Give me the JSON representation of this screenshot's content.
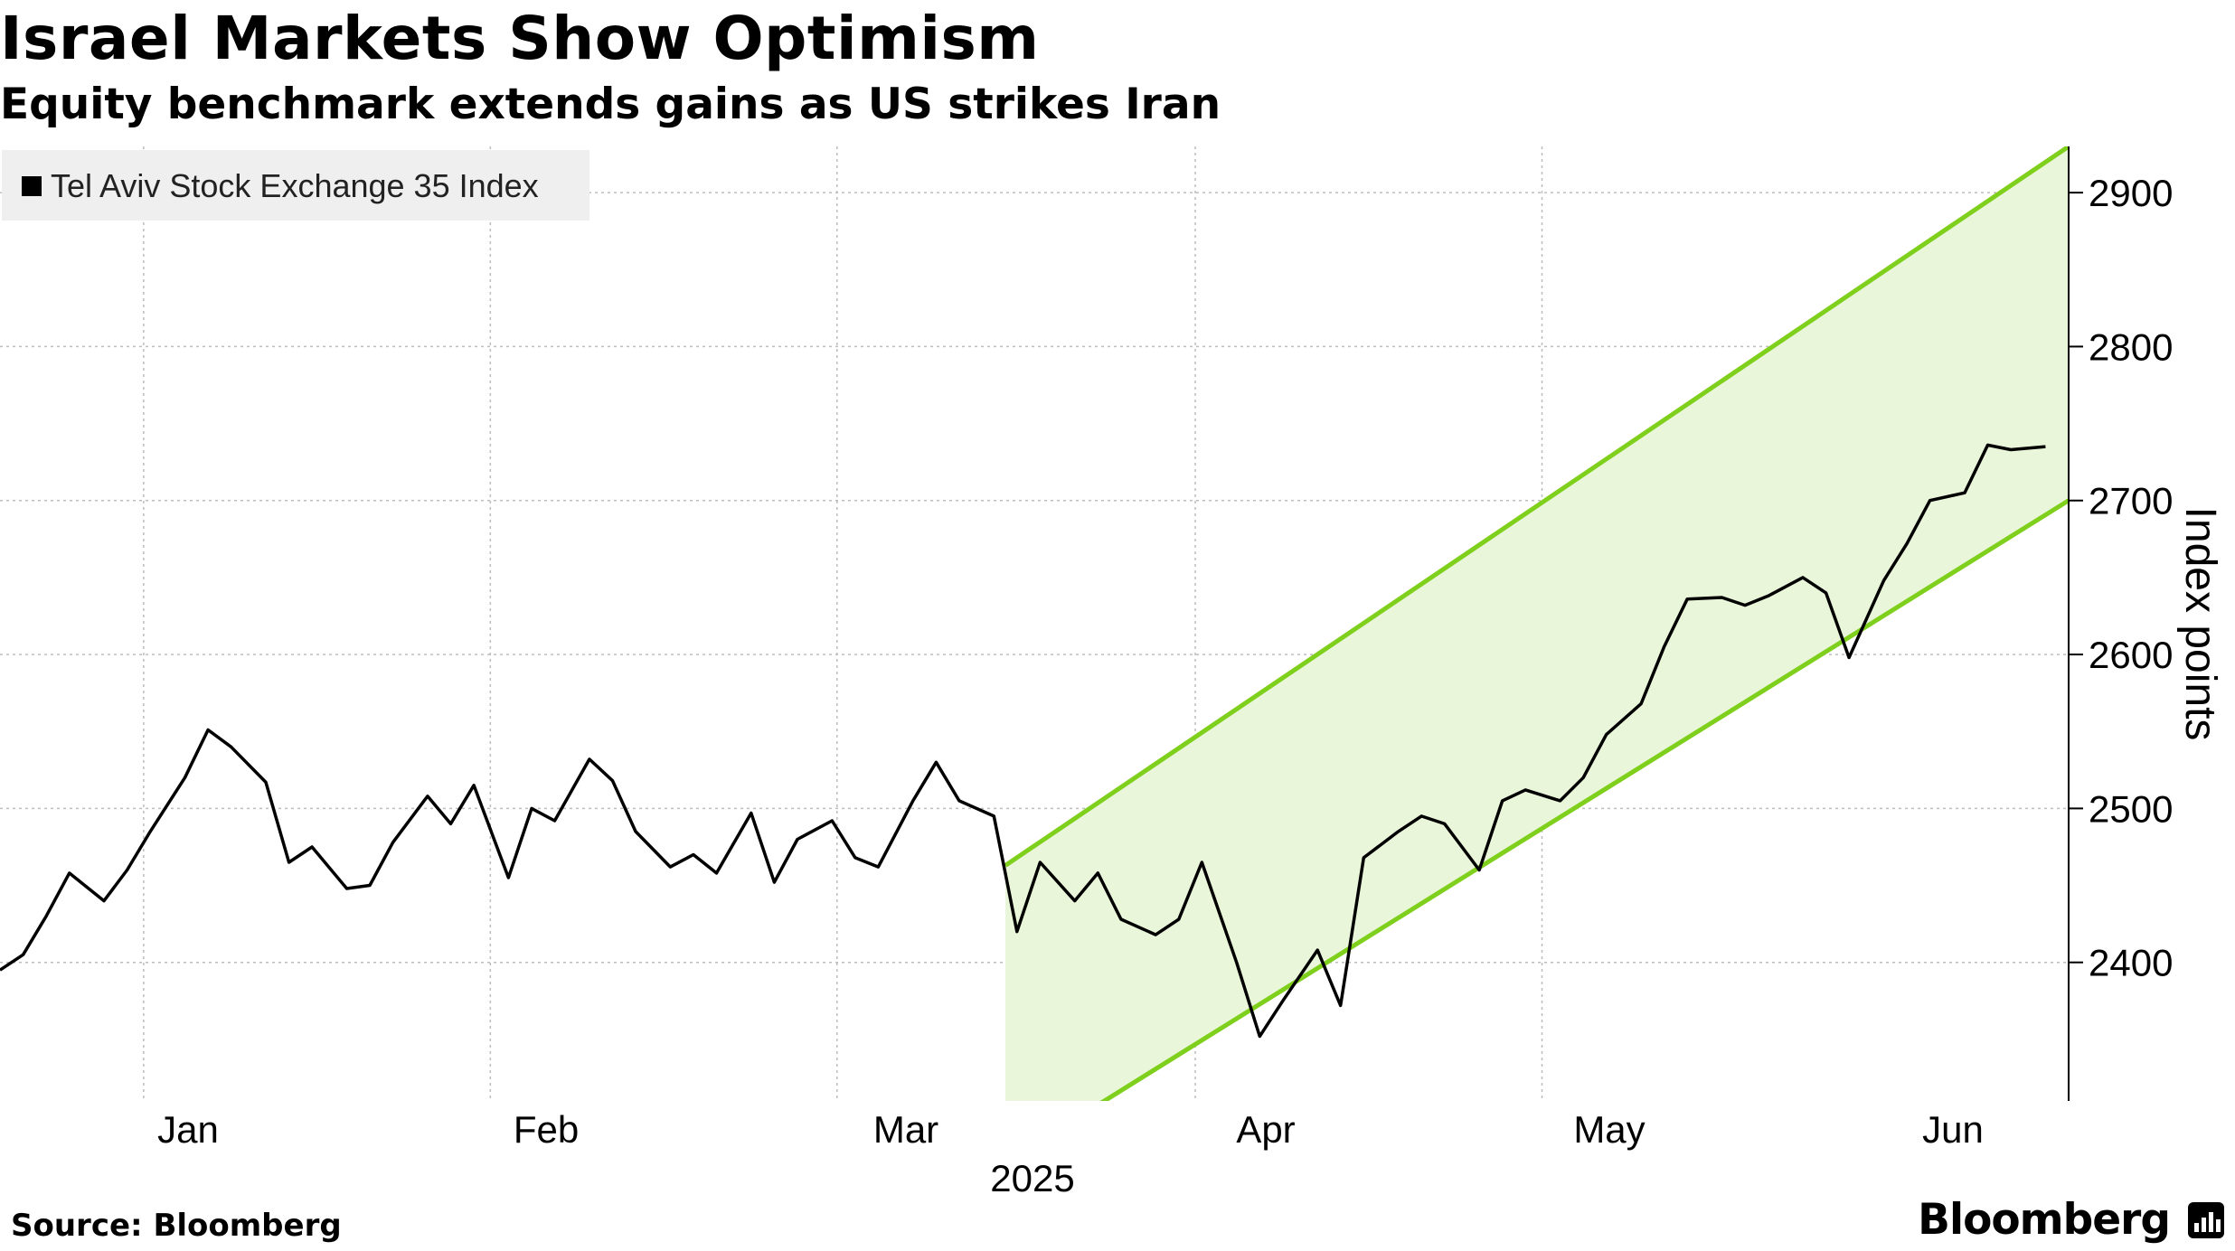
{
  "title": "Israel Markets Show Optimism",
  "subtitle": "Equity benchmark extends gains as US strikes Iran",
  "source": "Source: Bloomberg",
  "brand": "Bloomberg",
  "brand_icon": "bloomberg-terminal-icon",
  "colors": {
    "line": "#000000",
    "channel_line": "#7fcf1d",
    "channel_fill": "#eaf6da",
    "grid": "#bdbdbd",
    "legend_bg": "#efefef"
  },
  "chart_data": {
    "type": "line",
    "title": "Israel Markets Show Optimism",
    "subtitle": "Equity benchmark extends gains as US strikes Iran",
    "ylabel": "Index points",
    "xlabel": "2025",
    "ylim": [
      2310,
      2930
    ],
    "yticks": [
      2400,
      2500,
      2600,
      2700,
      2800,
      2900
    ],
    "x_tick_labels": [
      "Jan",
      "Feb",
      "Mar",
      "Apr",
      "May",
      "Jun"
    ],
    "year_label": "2025",
    "legend": [
      "Tel Aviv Stock Exchange 35 Index"
    ],
    "legend_position": "top-left",
    "grid": true,
    "x_domain": [
      "2024-12-27",
      "2025-06-24"
    ],
    "x_tick_dates": [
      "2025-01-01",
      "2025-02-01",
      "2025-03-01",
      "2025-04-01",
      "2025-05-01",
      "2025-06-01"
    ],
    "series": [
      {
        "name": "Tel Aviv Stock Exchange 35 Index",
        "x": [
          "2024-12-27",
          "2024-12-29",
          "2024-12-31",
          "2025-01-02",
          "2025-01-05",
          "2025-01-07",
          "2025-01-09",
          "2025-01-12",
          "2025-01-14",
          "2025-01-16",
          "2025-01-19",
          "2025-01-21",
          "2025-01-23",
          "2025-01-26",
          "2025-01-28",
          "2025-01-30",
          "2025-02-02",
          "2025-02-04",
          "2025-02-06",
          "2025-02-09",
          "2025-02-11",
          "2025-02-13",
          "2025-02-16",
          "2025-02-18",
          "2025-02-20",
          "2025-02-23",
          "2025-02-25",
          "2025-02-27",
          "2025-03-02",
          "2025-03-04",
          "2025-03-06",
          "2025-03-09",
          "2025-03-11",
          "2025-03-13",
          "2025-03-16",
          "2025-03-18",
          "2025-03-20",
          "2025-03-23",
          "2025-03-25",
          "2025-03-27",
          "2025-03-30",
          "2025-04-01",
          "2025-04-03",
          "2025-04-06",
          "2025-04-08",
          "2025-04-10",
          "2025-04-13",
          "2025-04-15",
          "2025-04-17",
          "2025-04-20",
          "2025-04-22",
          "2025-04-24",
          "2025-04-27",
          "2025-04-29",
          "2025-05-01",
          "2025-05-04",
          "2025-05-06",
          "2025-05-08",
          "2025-05-11",
          "2025-05-13",
          "2025-05-15",
          "2025-05-18",
          "2025-05-20",
          "2025-05-22",
          "2025-05-25",
          "2025-05-27",
          "2025-05-29",
          "2025-06-01",
          "2025-06-03",
          "2025-06-05",
          "2025-06-08",
          "2025-06-10",
          "2025-06-12",
          "2025-06-15",
          "2025-06-17",
          "2025-06-19",
          "2025-06-22"
        ],
        "values": [
          2395,
          2405,
          2430,
          2458,
          2440,
          2460,
          2485,
          2520,
          2551,
          2540,
          2517,
          2465,
          2475,
          2448,
          2450,
          2478,
          2508,
          2490,
          2515,
          2455,
          2500,
          2492,
          2532,
          2518,
          2485,
          2462,
          2470,
          2458,
          2497,
          2452,
          2480,
          2492,
          2468,
          2462,
          2505,
          2530,
          2505,
          2495,
          2420,
          2465,
          2440,
          2458,
          2428,
          2418,
          2428,
          2465,
          2400,
          2352,
          2375,
          2408,
          2372,
          2468,
          2485,
          2495,
          2490,
          2460,
          2505,
          2512,
          2505,
          2520,
          2548,
          2568,
          2605,
          2636,
          2637,
          2632,
          2638,
          2650,
          2640,
          2598,
          2648,
          2672,
          2700,
          2705,
          2736,
          2733,
          2735
        ]
      }
    ],
    "trend_channel": {
      "start_date": "2025-03-24",
      "end_date": "2025-06-24",
      "upper": [
        2463,
        2930
      ],
      "lower": [
        2270,
        2700
      ]
    }
  }
}
